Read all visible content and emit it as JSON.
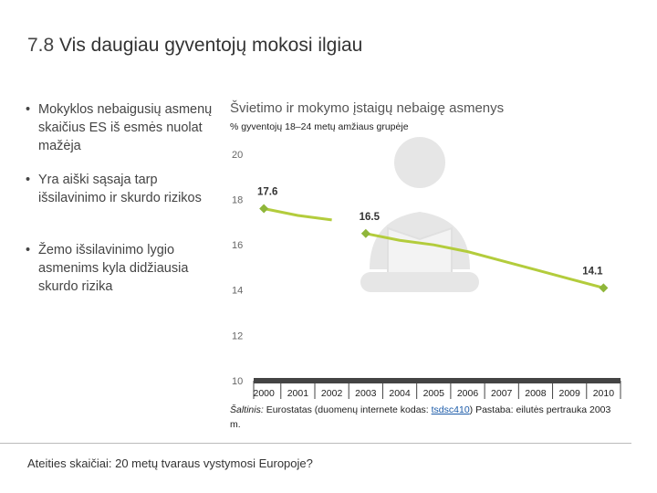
{
  "header": {
    "number": "7.8",
    "title": "Vis daugiau gyventojų mokosi ilgiau"
  },
  "bullets": [
    "Mokyklos nebaigusių asmenų skaičius ES iš esmės nuolat mažėja",
    "Yra aiški sąsaja tarp išsilavinimo ir skurdo rizikos",
    "Žemo išsilavinimo lygio asmenims kyla didžiausia skurdo rizika"
  ],
  "chart_data": {
    "type": "line",
    "title": "Švietimo ir mokymo įstaigų nebaigę asmenys",
    "subtitle": "% gyventojų 18–24 metų amžiaus grupėje",
    "x": [
      2000,
      2001,
      2002,
      2003,
      2004,
      2005,
      2006,
      2007,
      2008,
      2009,
      2010
    ],
    "series": [
      {
        "color": "#b3cc3c",
        "values": [
          17.6,
          17.3,
          17.1,
          null,
          null,
          null,
          null,
          null,
          null,
          null,
          null
        ]
      },
      {
        "color": "#b3cc3c",
        "values": [
          null,
          null,
          null,
          16.5,
          16.2,
          16.0,
          15.7,
          15.3,
          14.9,
          14.5,
          14.1
        ]
      }
    ],
    "marker_color": "#8fb63a",
    "xlim": [
      1999.7,
      2010.5
    ],
    "ylim": [
      10,
      20
    ],
    "yticks": [
      10,
      12,
      14,
      16,
      18,
      20
    ],
    "source": {
      "label": "Šaltinis:",
      "text": "Eurostatas (duomenų internete kodas:",
      "link": "tsdsc410",
      "note": ") Pastaba: eilutės pertrauka 2003 m."
    }
  },
  "footer": "Ateities skaičiai: 20 metų tvaraus vystymosi Europoje?"
}
